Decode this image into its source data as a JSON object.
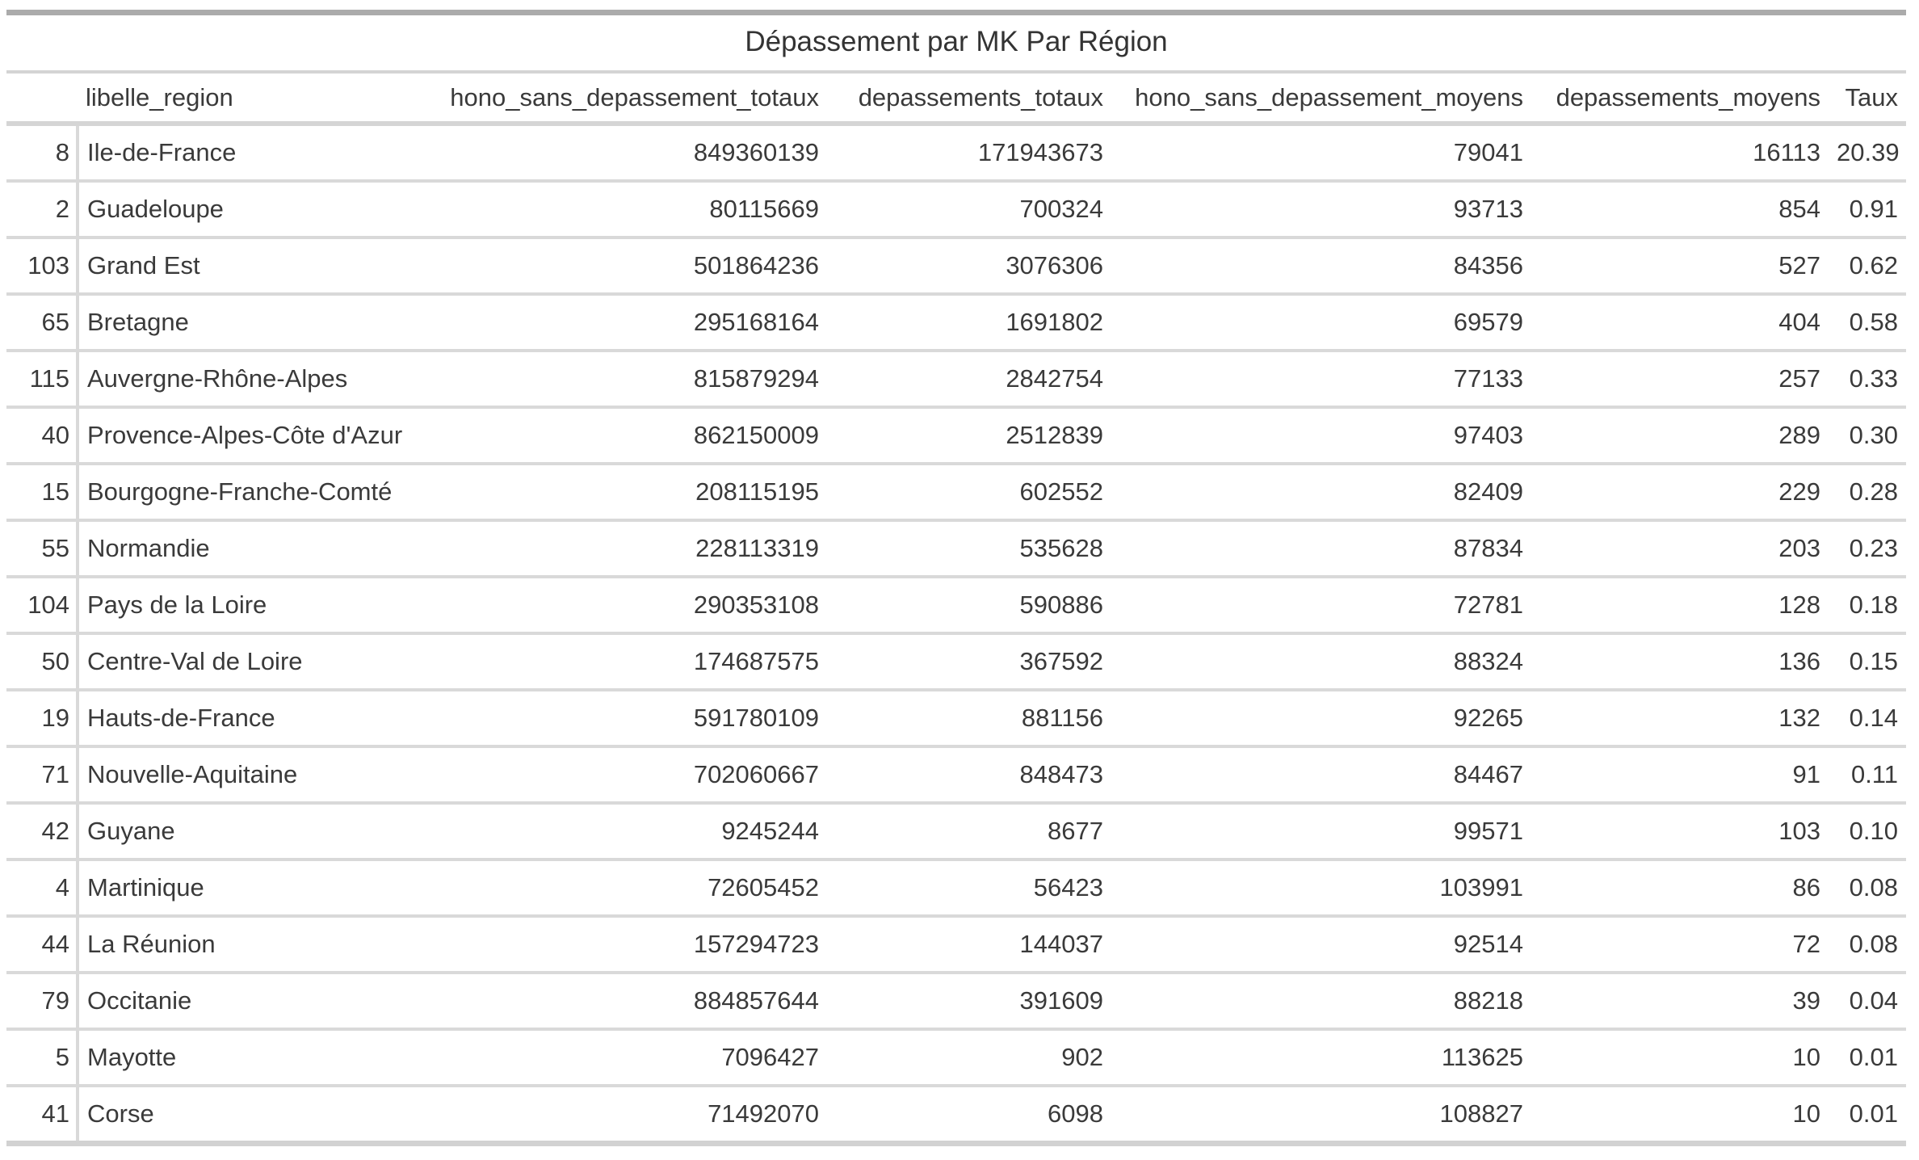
{
  "chart_data": {
    "type": "table",
    "title": "Dépassement par MK Par Région",
    "columns": [
      "libelle_region",
      "hono_sans_depassement_totaux",
      "depassements_totaux",
      "hono_sans_depassement_moyens",
      "depassements_moyens",
      "Taux"
    ],
    "index_column_label": "",
    "rows": [
      [
        "8",
        "Ile-de-France",
        "849360139",
        "171943673",
        "79041",
        "16113",
        "20.39"
      ],
      [
        "2",
        "Guadeloupe",
        "80115669",
        "700324",
        "93713",
        "854",
        "0.91"
      ],
      [
        "103",
        "Grand Est",
        "501864236",
        "3076306",
        "84356",
        "527",
        "0.62"
      ],
      [
        "65",
        "Bretagne",
        "295168164",
        "1691802",
        "69579",
        "404",
        "0.58"
      ],
      [
        "115",
        "Auvergne-Rhône-Alpes",
        "815879294",
        "2842754",
        "77133",
        "257",
        "0.33"
      ],
      [
        "40",
        "Provence-Alpes-Côte d'Azur",
        "862150009",
        "2512839",
        "97403",
        "289",
        "0.30"
      ],
      [
        "15",
        "Bourgogne-Franche-Comté",
        "208115195",
        "602552",
        "82409",
        "229",
        "0.28"
      ],
      [
        "55",
        "Normandie",
        "228113319",
        "535628",
        "87834",
        "203",
        "0.23"
      ],
      [
        "104",
        "Pays de la Loire",
        "290353108",
        "590886",
        "72781",
        "128",
        "0.18"
      ],
      [
        "50",
        "Centre-Val de Loire",
        "174687575",
        "367592",
        "88324",
        "136",
        "0.15"
      ],
      [
        "19",
        "Hauts-de-France",
        "591780109",
        "881156",
        "92265",
        "132",
        "0.14"
      ],
      [
        "71",
        "Nouvelle-Aquitaine",
        "702060667",
        "848473",
        "84467",
        "91",
        "0.11"
      ],
      [
        "42",
        "Guyane",
        "9245244",
        "8677",
        "99571",
        "103",
        "0.10"
      ],
      [
        "4",
        "Martinique",
        "72605452",
        "56423",
        "103991",
        "86",
        "0.08"
      ],
      [
        "44",
        "La Réunion",
        "157294723",
        "144037",
        "92514",
        "72",
        "0.08"
      ],
      [
        "79",
        "Occitanie",
        "884857644",
        "391609",
        "88218",
        "39",
        "0.04"
      ],
      [
        "5",
        "Mayotte",
        "7096427",
        "902",
        "113625",
        "10",
        "0.01"
      ],
      [
        "41",
        "Corse",
        "71492070",
        "6098",
        "108827",
        "10",
        "0.01"
      ]
    ],
    "layout": {
      "grid": "horizontal row separators only",
      "header_alignment": "numeric columns right, region column left",
      "body_alignment": "numeric columns right, region column left"
    }
  },
  "colors": {
    "top_rule": "#ababab",
    "light_rule": "#d4d4d4",
    "row_separator": "#d9d9d9",
    "text": "#3a3a3a",
    "title_text": "#333333",
    "background": "#ffffff"
  }
}
